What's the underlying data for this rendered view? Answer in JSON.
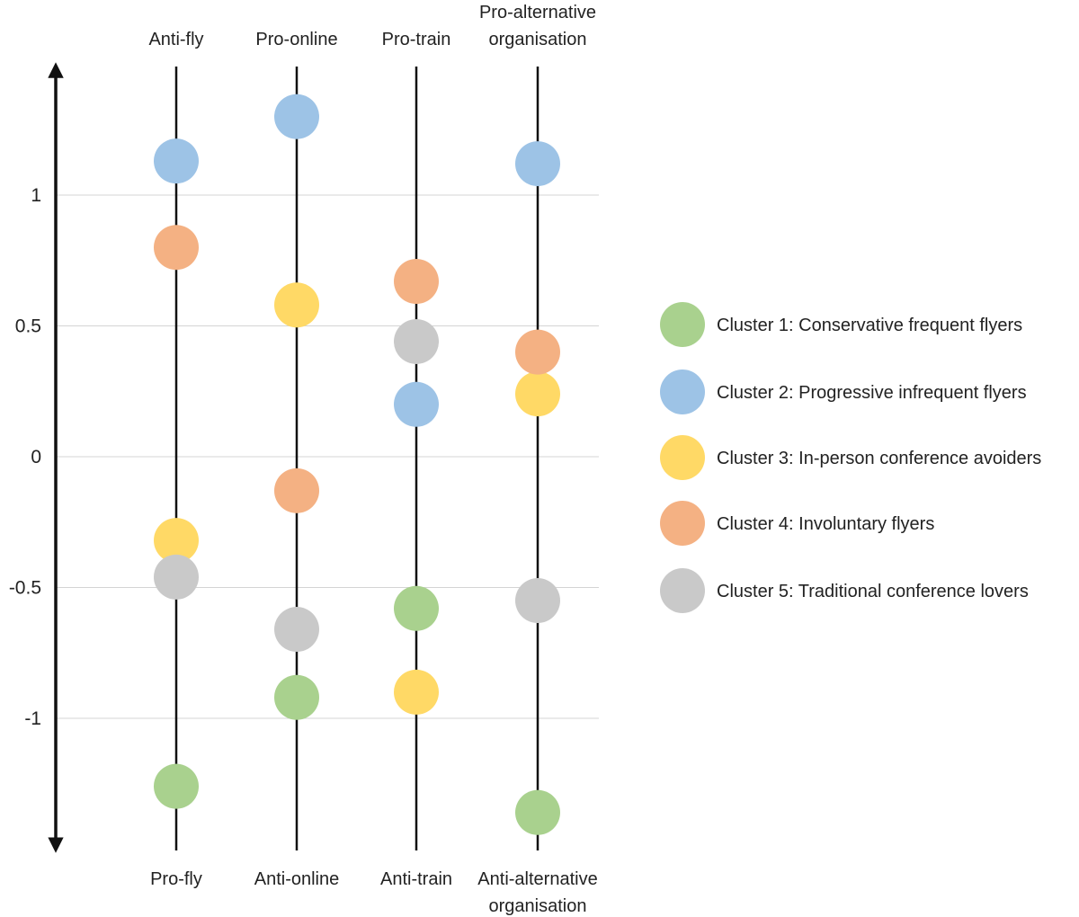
{
  "chart_data": {
    "type": "scatter",
    "ylim": [
      -1.5,
      1.5
    ],
    "y_ticks": [
      {
        "value": 1,
        "label": "1"
      },
      {
        "value": 0.5,
        "label": "0.5"
      },
      {
        "value": 0,
        "label": "0"
      },
      {
        "value": -0.5,
        "label": "-0.5"
      },
      {
        "value": -1,
        "label": "-1"
      }
    ],
    "grid": true,
    "legend_position": "right",
    "dimensions": [
      {
        "top_label": [
          "Anti-fly"
        ],
        "bottom_label": [
          "Pro-fly"
        ]
      },
      {
        "top_label": [
          "Pro-online"
        ],
        "bottom_label": [
          "Anti-online"
        ]
      },
      {
        "top_label": [
          "Pro-train"
        ],
        "bottom_label": [
          "Anti-train"
        ]
      },
      {
        "top_label": [
          "Pro-alternative",
          "organisation"
        ],
        "bottom_label": [
          "Anti-alternative",
          "organisation"
        ]
      }
    ],
    "series": [
      {
        "name": "Cluster 1: Conservative frequent flyers",
        "color": "#a9d18e",
        "values": [
          -1.26,
          -0.92,
          -0.58,
          -1.36
        ]
      },
      {
        "name": "Cluster 2: Progressive infrequent flyers",
        "color": "#9dc3e6",
        "values": [
          1.13,
          1.3,
          0.2,
          1.12
        ]
      },
      {
        "name": "Cluster 3: In-person conference avoiders",
        "color": "#ffd966",
        "values": [
          -0.32,
          0.58,
          -0.9,
          0.24
        ]
      },
      {
        "name": "Cluster 4: Involuntary flyers",
        "color": "#f4b183",
        "values": [
          0.8,
          -0.13,
          0.67,
          0.4
        ]
      },
      {
        "name": "Cluster 5: Traditional conference lovers",
        "color": "#c9c9c9",
        "values": [
          -0.46,
          -0.66,
          0.44,
          -0.55
        ]
      }
    ]
  }
}
